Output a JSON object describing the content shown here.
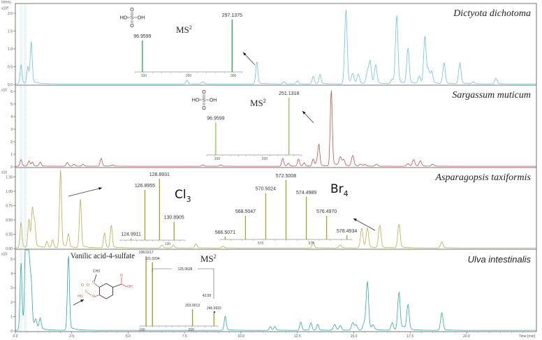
{
  "chart_data": {
    "type": "line",
    "x_axis": {
      "label": "Time [min]",
      "xlim": [
        0,
        23.1
      ],
      "ticks": [
        0,
        2.5,
        5,
        7.5,
        10,
        12.5,
        15,
        17.5,
        20
      ],
      "tick_labels": [
        "0.0",
        "2.5",
        "5.0",
        "7.5",
        "10.0",
        "12.5",
        "15.0",
        "17.5",
        "20.0"
      ]
    },
    "y_axis_label": "Intens.",
    "grid": false,
    "panels": [
      {
        "species": "Dictyota dichotoma",
        "color": "#6cc0e0",
        "y_scale_label": "x10",
        "y_scale_exp": "8",
        "ylim": [
          0,
          2.2
        ],
        "yticks": [
          0,
          0.5,
          1.0,
          1.5,
          2.0
        ],
        "ytick_labels": [
          "0.0",
          "0.5",
          "1.0",
          "1.5",
          "2.0"
        ],
        "peaks": [
          [
            0.25,
            0.5
          ],
          [
            0.55,
            0.45
          ],
          [
            0.7,
            1.1
          ],
          [
            7.6,
            0.1
          ],
          [
            8.3,
            0.05
          ],
          [
            10.7,
            0.6
          ],
          [
            11.9,
            0.06
          ],
          [
            12.5,
            0.08
          ],
          [
            13.2,
            0.2
          ],
          [
            13.5,
            0.25
          ],
          [
            14.65,
            2.0
          ],
          [
            14.95,
            0.25
          ],
          [
            15.2,
            0.25
          ],
          [
            15.6,
            0.3
          ],
          [
            15.72,
            0.6
          ],
          [
            15.97,
            0.5
          ],
          [
            16.7,
            0.12
          ],
          [
            16.9,
            1.85
          ],
          [
            17.4,
            0.95
          ],
          [
            17.9,
            0.2
          ],
          [
            18.15,
            1.25
          ],
          [
            18.3,
            0.35
          ],
          [
            18.45,
            0.3
          ],
          [
            19.0,
            0.55
          ],
          [
            19.7,
            0.55
          ],
          [
            20.3,
            0.05
          ],
          [
            21.3,
            0.15
          ]
        ],
        "inset": {
          "label": "MS",
          "label_sup": "2",
          "color": "#2aa84a",
          "xlim": [
            80,
            320
          ],
          "ticks": [
            100,
            200,
            300
          ],
          "tick_labels": [
            "100",
            "200",
            "300"
          ],
          "peaks": [
            {
              "mz": 96.9599,
              "rel": 0.6,
              "label": "96.9599"
            },
            {
              "mz": 297.1375,
              "rel": 1.0,
              "label": "297.1375"
            }
          ],
          "structure": {
            "left": "HO",
            "center": "S",
            "right": "OH",
            "top": "O",
            "bottom": "O"
          }
        }
      },
      {
        "species": "Sargassum muticum",
        "color": "#c0504d",
        "y_scale_label": "x10",
        "y_scale_exp": "",
        "ylim": [
          0,
          6.5
        ],
        "yticks": [
          0,
          1,
          2,
          3,
          4,
          5,
          6
        ],
        "ytick_labels": [
          "0",
          "1",
          "2",
          "3",
          "4",
          "5",
          "6"
        ],
        "peaks": [
          [
            0.25,
            0.5
          ],
          [
            0.6,
            0.4
          ],
          [
            0.75,
            0.3
          ],
          [
            1.1,
            0.3
          ],
          [
            2.3,
            0.3
          ],
          [
            2.6,
            0.15
          ],
          [
            3.0,
            0.15
          ],
          [
            3.8,
            0.6
          ],
          [
            4.3,
            0.1
          ],
          [
            8.3,
            0.1
          ],
          [
            9.1,
            0.1
          ],
          [
            11.85,
            0.3
          ],
          [
            12.1,
            0.2
          ],
          [
            11.85,
            0.3
          ],
          [
            12.55,
            0.55
          ],
          [
            12.8,
            0.25
          ],
          [
            13.2,
            0.55
          ],
          [
            13.45,
            1.65
          ],
          [
            13.35,
            0.3
          ],
          [
            14.0,
            5.8
          ],
          [
            14.4,
            0.65
          ],
          [
            14.55,
            0.45
          ],
          [
            14.95,
            0.8
          ],
          [
            15.3,
            0.15
          ],
          [
            15.5,
            0.12
          ],
          [
            16.0,
            0.15
          ],
          [
            17.4,
            0.2
          ],
          [
            17.65,
            0.5
          ],
          [
            17.95,
            0.4
          ],
          [
            18.5,
            0.15
          ]
        ],
        "inset": {
          "label": "MS",
          "label_sup": "2",
          "color": "#8cc63f",
          "xlim": [
            78,
            278
          ],
          "ticks": [
            100,
            200
          ],
          "tick_labels": [
            "100",
            "200"
          ],
          "peaks": [
            {
              "mz": 96.9599,
              "rel": 0.57,
              "label": "96.9599"
            },
            {
              "mz": 251.1318,
              "rel": 1.0,
              "label": "251.1318"
            }
          ],
          "structure": {
            "left": "HO",
            "center": "S",
            "right": "OH",
            "top": "O",
            "bottom": "O"
          }
        }
      },
      {
        "species": "Asparagopsis taxiformis",
        "color": "#b5b050",
        "y_scale_label": "x10",
        "y_scale_exp": "",
        "ylim": [
          0,
          1.4
        ],
        "yticks": [
          0,
          0.25,
          0.5,
          0.75,
          1.0,
          1.25
        ],
        "ytick_labels": [
          "0.00",
          "0.25",
          "0.50",
          "0.75",
          "1.00",
          "1.25"
        ],
        "peaks": [
          [
            0.25,
            0.42
          ],
          [
            0.6,
            0.47
          ],
          [
            0.75,
            0.62
          ],
          [
            0.85,
            0.4
          ],
          [
            1.4,
            0.1
          ],
          [
            1.65,
            0.13
          ],
          [
            2.0,
            1.28
          ],
          [
            2.35,
            0.22
          ],
          [
            2.88,
            0.82
          ],
          [
            3.95,
            0.25
          ],
          [
            4.25,
            0.38
          ],
          [
            6.5,
            0.05
          ],
          [
            7.0,
            0.05
          ],
          [
            8.0,
            0.07
          ],
          [
            9.2,
            0.03
          ],
          [
            13.2,
            0.1
          ],
          [
            14.4,
            0.05
          ],
          [
            15.35,
            0.33
          ],
          [
            15.6,
            0.33
          ],
          [
            16.15,
            0.38
          ],
          [
            17.0,
            0.4
          ],
          [
            18.9,
            0.1
          ]
        ],
        "insets": [
          {
            "iso_label": "Cl",
            "iso_sub": "3",
            "color": "#a5a32a",
            "xlim": [
              123.5,
              132.4
            ],
            "ticks": [
              130
            ],
            "tick_labels": [
              "130"
            ],
            "peaks": [
              {
                "mz": 124.9911,
                "rel": 0.03,
                "label": "124.9911"
              },
              {
                "mz": 126.8955,
                "rel": 0.82,
                "label": "126.8955"
              },
              {
                "mz": 128.8931,
                "rel": 1.0,
                "label": "128.8931"
              },
              {
                "mz": 130.8905,
                "rel": 0.3,
                "label": "130.8905"
              }
            ]
          },
          {
            "iso_label": "Br",
            "iso_sub": "4",
            "color": "#a5a32a",
            "xlim": [
              566,
              579
            ],
            "ticks": [
              570,
              575
            ],
            "tick_labels": [
              "570",
              "575"
            ],
            "peaks": [
              {
                "mz": 566.5071,
                "rel": 0.05,
                "label": "566.5071"
              },
              {
                "mz": 568.5047,
                "rel": 0.4,
                "label": "568.5047"
              },
              {
                "mz": 570.5024,
                "rel": 0.78,
                "label": "570.5024"
              },
              {
                "mz": 572.5008,
                "rel": 1.0,
                "label": "572.5008"
              },
              {
                "mz": 574.4989,
                "rel": 0.72,
                "label": "574.4989"
              },
              {
                "mz": 576.497,
                "rel": 0.4,
                "label": "576.4970"
              },
              {
                "mz": 578.4934,
                "rel": 0.07,
                "label": "578.4934"
              }
            ]
          }
        ]
      },
      {
        "species": "Ulva intestinalis",
        "color": "#2ea8a0",
        "y_scale_label": "x10",
        "y_scale_exp": "",
        "ylim": [
          0,
          5.5
        ],
        "yticks": [
          0,
          1,
          2,
          3,
          4,
          5
        ],
        "ytick_labels": [
          "0",
          "1",
          "2",
          "3",
          "4",
          "5"
        ],
        "peaks": [
          [
            0.25,
            4.4
          ],
          [
            0.45,
            5.6
          ],
          [
            0.55,
            4.6
          ],
          [
            0.62,
            2.7
          ],
          [
            0.7,
            2.6
          ],
          [
            0.9,
            0.5
          ],
          [
            1.1,
            0.7
          ],
          [
            2.35,
            5.0
          ],
          [
            9.3,
            0.95
          ],
          [
            11.3,
            0.25
          ],
          [
            11.5,
            0.25
          ],
          [
            12.65,
            0.55
          ],
          [
            13.1,
            0.5
          ],
          [
            13.4,
            0.4
          ],
          [
            14.15,
            0.4
          ],
          [
            14.4,
            0.3
          ],
          [
            14.95,
            0.5
          ],
          [
            15.1,
            0.35
          ],
          [
            15.45,
            0.45
          ],
          [
            15.6,
            3.25
          ],
          [
            15.85,
            0.3
          ],
          [
            16.7,
            0.5
          ],
          [
            17.0,
            2.55
          ],
          [
            17.2,
            0.2
          ],
          [
            17.4,
            1.7
          ],
          [
            18.9,
            1.15
          ]
        ],
        "compound": "Vanilic acid-4-sulfate",
        "structure_labels": {
          "methyl": "CH3",
          "methoxy_o": "O",
          "acid_o": "O",
          "acid_oh": "OH",
          "sulfo_ho": "HO",
          "sulfo_s": "S",
          "sulfo_o1": "O",
          "sulfo_o2": "O",
          "ester_o": "O"
        },
        "inset": {
          "label": "MS",
          "label_sup": "2",
          "color": "#9a9a20",
          "xlim": [
            95,
            255
          ],
          "ticks": [
            100,
            200
          ],
          "tick_labels": [
            "100",
            "200"
          ],
          "peaks": [
            {
              "mz": 108.0217,
              "rel": 1.0,
              "label": "108.0217"
            },
            {
              "mz": 121.0294,
              "rel": 0.91,
              "label": "121.0294"
            },
            {
              "mz": 203.0013,
              "rel": 0.24,
              "label": "203.0013"
            },
            {
              "mz": 246.9922,
              "rel": 0.2,
              "label": "246.9922"
            }
          ],
          "neutral_losses": [
            "125.9628",
            "43.99"
          ]
        }
      }
    ]
  }
}
